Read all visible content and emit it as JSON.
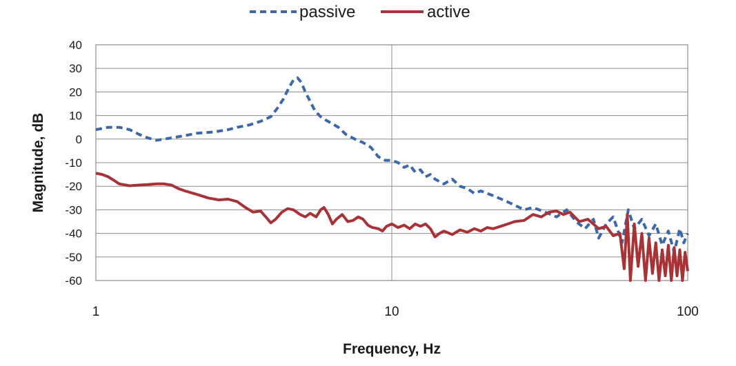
{
  "chart_data": {
    "type": "line",
    "title": "",
    "xlabel": "Frequency, Hz",
    "ylabel": "Magnitude, dB",
    "x_scale": "log",
    "xlim": [
      1,
      100
    ],
    "ylim": [
      -60,
      40
    ],
    "x_ticks": [
      {
        "value": 1,
        "label": "1"
      },
      {
        "value": 10,
        "label": "10"
      },
      {
        "value": 100,
        "label": "100"
      }
    ],
    "y_ticks": [
      {
        "value": 40,
        "label": "40"
      },
      {
        "value": 30,
        "label": "30"
      },
      {
        "value": 20,
        "label": "20"
      },
      {
        "value": 10,
        "label": "10"
      },
      {
        "value": 0,
        "label": "0"
      },
      {
        "value": -10,
        "label": "-10"
      },
      {
        "value": -20,
        "label": "-20"
      },
      {
        "value": -30,
        "label": "-30"
      },
      {
        "value": -40,
        "label": "-40"
      },
      {
        "value": -50,
        "label": "-50"
      },
      {
        "value": -60,
        "label": "-60"
      }
    ],
    "grid": true,
    "legend_position": "top-center",
    "series": [
      {
        "name": "passive",
        "color": "#3c67a8",
        "style": "dashed",
        "points": [
          [
            1.0,
            4
          ],
          [
            1.1,
            5
          ],
          [
            1.2,
            5
          ],
          [
            1.3,
            4
          ],
          [
            1.4,
            2
          ],
          [
            1.5,
            0.5
          ],
          [
            1.6,
            -0.5
          ],
          [
            1.7,
            0
          ],
          [
            1.8,
            0.5
          ],
          [
            2.0,
            1.5
          ],
          [
            2.2,
            2.5
          ],
          [
            2.5,
            3
          ],
          [
            2.8,
            4
          ],
          [
            3.0,
            5
          ],
          [
            3.3,
            6
          ],
          [
            3.6,
            7.5
          ],
          [
            3.9,
            9.5
          ],
          [
            4.1,
            13
          ],
          [
            4.3,
            17
          ],
          [
            4.5,
            22
          ],
          [
            4.65,
            25
          ],
          [
            4.8,
            26
          ],
          [
            4.95,
            24
          ],
          [
            5.1,
            20
          ],
          [
            5.3,
            16
          ],
          [
            5.5,
            12
          ],
          [
            5.8,
            9
          ],
          [
            6.2,
            7
          ],
          [
            6.6,
            5
          ],
          [
            7.0,
            2
          ],
          [
            7.5,
            0
          ],
          [
            8.0,
            -1.5
          ],
          [
            8.5,
            -3.5
          ],
          [
            9.0,
            -7.5
          ],
          [
            9.5,
            -9
          ],
          [
            10.0,
            -9
          ],
          [
            10.5,
            -10
          ],
          [
            11.0,
            -12
          ],
          [
            11.5,
            -11
          ],
          [
            12.0,
            -14
          ],
          [
            12.5,
            -13
          ],
          [
            13.0,
            -16
          ],
          [
            13.5,
            -15
          ],
          [
            14.0,
            -17
          ],
          [
            15.0,
            -19
          ],
          [
            16.0,
            -17
          ],
          [
            17.0,
            -20
          ],
          [
            18.0,
            -21
          ],
          [
            19.0,
            -23
          ],
          [
            20.0,
            -22
          ],
          [
            22.0,
            -24
          ],
          [
            24.0,
            -26
          ],
          [
            26.0,
            -28
          ],
          [
            28.0,
            -30
          ],
          [
            30.0,
            -29
          ],
          [
            33.0,
            -31
          ],
          [
            36.0,
            -33
          ],
          [
            39.0,
            -30
          ],
          [
            42.0,
            -35
          ],
          [
            45.0,
            -38
          ],
          [
            48.0,
            -34
          ],
          [
            50.0,
            -42
          ],
          [
            53.0,
            -36
          ],
          [
            56.0,
            -33
          ],
          [
            60.0,
            -44
          ],
          [
            63.0,
            -30
          ],
          [
            66.0,
            -38
          ],
          [
            70.0,
            -34
          ],
          [
            74.0,
            -41
          ],
          [
            78.0,
            -36
          ],
          [
            82.0,
            -45
          ],
          [
            86.0,
            -39
          ],
          [
            90.0,
            -48
          ],
          [
            94.0,
            -38
          ],
          [
            97.0,
            -44
          ],
          [
            100.0,
            -40
          ]
        ]
      },
      {
        "name": "active",
        "color": "#a83236",
        "style": "solid",
        "points": [
          [
            1.0,
            -14.5
          ],
          [
            1.05,
            -15
          ],
          [
            1.1,
            -16
          ],
          [
            1.15,
            -17.5
          ],
          [
            1.2,
            -19
          ],
          [
            1.3,
            -19.8
          ],
          [
            1.4,
            -19.5
          ],
          [
            1.5,
            -19.3
          ],
          [
            1.6,
            -19
          ],
          [
            1.7,
            -19
          ],
          [
            1.8,
            -19.5
          ],
          [
            1.9,
            -21
          ],
          [
            2.0,
            -22
          ],
          [
            2.2,
            -23.5
          ],
          [
            2.4,
            -25
          ],
          [
            2.6,
            -25.8
          ],
          [
            2.8,
            -25.5
          ],
          [
            3.0,
            -26.5
          ],
          [
            3.2,
            -29
          ],
          [
            3.4,
            -31
          ],
          [
            3.6,
            -30.5
          ],
          [
            3.75,
            -33
          ],
          [
            3.9,
            -35.5
          ],
          [
            4.05,
            -34
          ],
          [
            4.25,
            -31
          ],
          [
            4.45,
            -29.5
          ],
          [
            4.65,
            -30
          ],
          [
            4.9,
            -32
          ],
          [
            5.1,
            -33
          ],
          [
            5.3,
            -31.5
          ],
          [
            5.55,
            -33
          ],
          [
            5.75,
            -30
          ],
          [
            5.9,
            -29
          ],
          [
            6.1,
            -32
          ],
          [
            6.3,
            -36
          ],
          [
            6.5,
            -34
          ],
          [
            6.8,
            -32
          ],
          [
            7.1,
            -35
          ],
          [
            7.4,
            -34.5
          ],
          [
            7.7,
            -33
          ],
          [
            8.0,
            -34
          ],
          [
            8.3,
            -36.5
          ],
          [
            8.6,
            -37.5
          ],
          [
            9.0,
            -38
          ],
          [
            9.3,
            -39
          ],
          [
            9.6,
            -37
          ],
          [
            10.0,
            -36
          ],
          [
            10.5,
            -37.5
          ],
          [
            11.0,
            -36.5
          ],
          [
            11.5,
            -38
          ],
          [
            12.0,
            -36
          ],
          [
            12.5,
            -37
          ],
          [
            13.0,
            -36
          ],
          [
            13.5,
            -38
          ],
          [
            14.0,
            -41.5
          ],
          [
            14.5,
            -40
          ],
          [
            15.0,
            -39
          ],
          [
            16.0,
            -40.5
          ],
          [
            17.0,
            -38.5
          ],
          [
            18.0,
            -39.5
          ],
          [
            19.0,
            -38
          ],
          [
            20.0,
            -39
          ],
          [
            21.0,
            -37.5
          ],
          [
            22.0,
            -38
          ],
          [
            24.0,
            -36.5
          ],
          [
            26.0,
            -35
          ],
          [
            28.0,
            -34.5
          ],
          [
            30.0,
            -32
          ],
          [
            32.0,
            -33
          ],
          [
            34.0,
            -31
          ],
          [
            36.0,
            -30.5
          ],
          [
            38.0,
            -32
          ],
          [
            40.0,
            -31
          ],
          [
            43.0,
            -35
          ],
          [
            46.0,
            -34
          ],
          [
            50.0,
            -38
          ],
          [
            53.0,
            -37
          ],
          [
            56.0,
            -41
          ],
          [
            59.0,
            -40
          ],
          [
            61.0,
            -55
          ],
          [
            62.5,
            -32
          ],
          [
            64.0,
            -60
          ],
          [
            66.0,
            -36
          ],
          [
            68.0,
            -54
          ],
          [
            70.0,
            -40
          ],
          [
            72.0,
            -60
          ],
          [
            74.0,
            -42
          ],
          [
            76.0,
            -57
          ],
          [
            78.0,
            -44
          ],
          [
            80.0,
            -60
          ],
          [
            82.0,
            -47
          ],
          [
            84.0,
            -58
          ],
          [
            86.0,
            -45
          ],
          [
            88.0,
            -60
          ],
          [
            90.0,
            -46
          ],
          [
            92.0,
            -58
          ],
          [
            94.0,
            -47
          ],
          [
            96.0,
            -60
          ],
          [
            98.0,
            -48
          ],
          [
            100.0,
            -56
          ]
        ]
      }
    ]
  }
}
